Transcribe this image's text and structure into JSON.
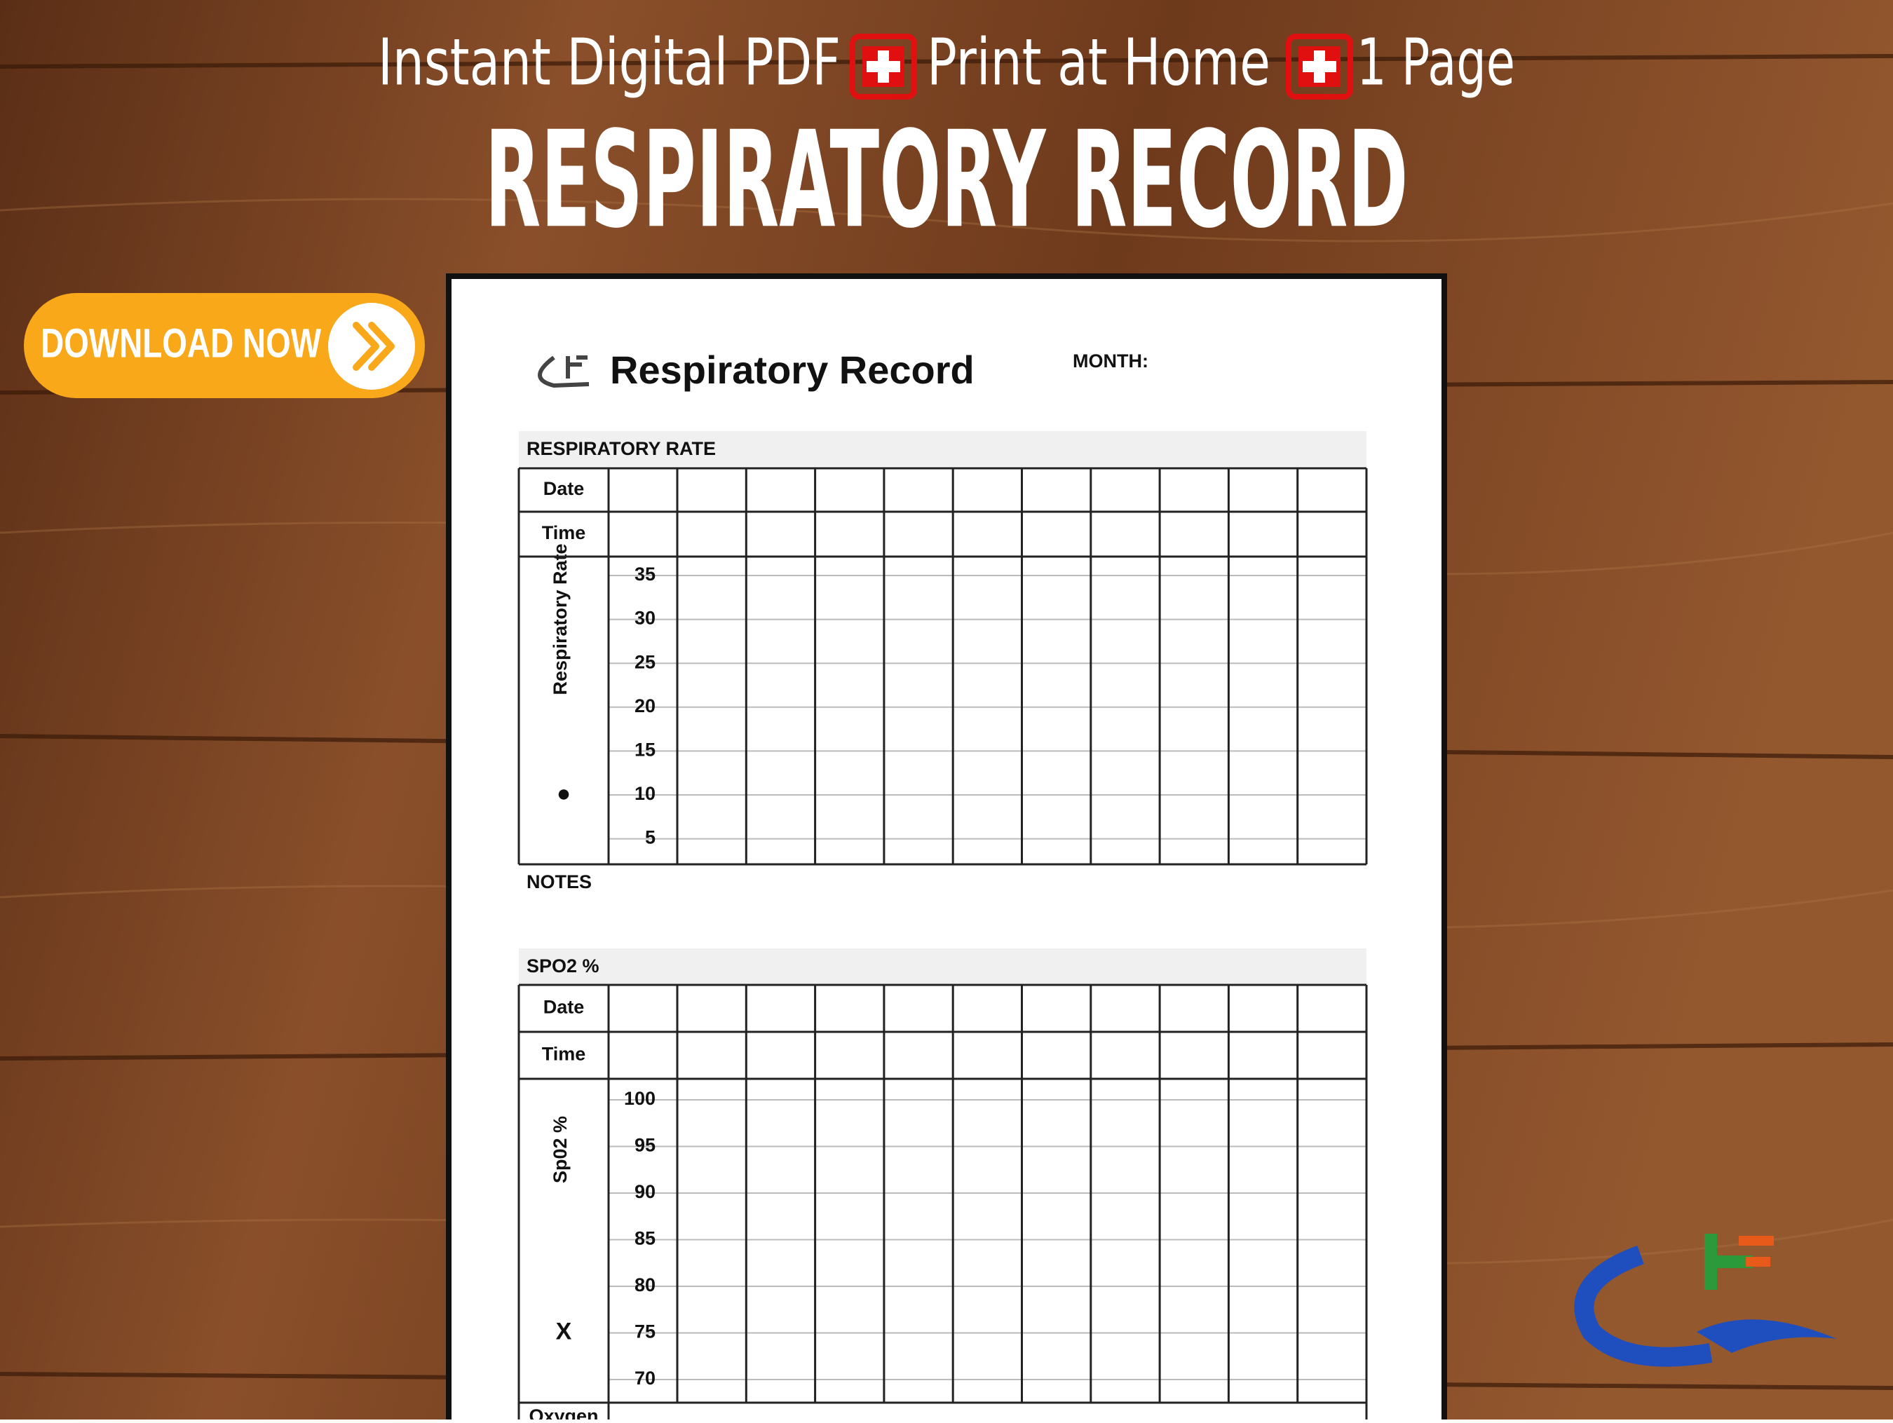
{
  "banner": {
    "line_parts": [
      "Instant Digital PDF",
      "Print at Home",
      "1 Page"
    ],
    "title": "RESPIRATORY RECORD",
    "button": "DOWNLOAD NOW"
  },
  "document": {
    "title": "Respiratory Record",
    "month_label": "MONTH:",
    "sections": [
      {
        "heading": "RESPIRATORY RATE",
        "row_labels": [
          "Date",
          "Time"
        ],
        "axis_label": "Respiratory Rate",
        "marker": "●",
        "scale": [
          35,
          30,
          25,
          20,
          15,
          10,
          5
        ]
      },
      {
        "heading": "SPO2 %",
        "row_labels": [
          "Date",
          "Time"
        ],
        "axis_label": "Sp02 %",
        "marker": "X",
        "scale": [
          100,
          95,
          90,
          85,
          80,
          75,
          70
        ],
        "footer_label": "Oxygen"
      }
    ],
    "notes_label": "NOTES"
  }
}
